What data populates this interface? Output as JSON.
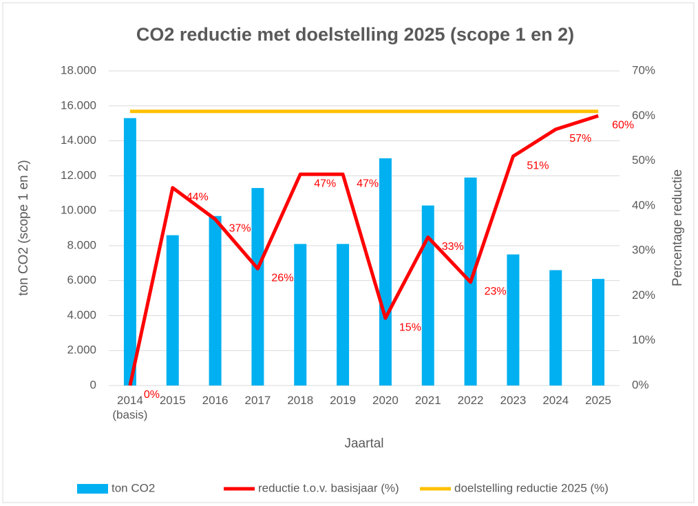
{
  "chart_data": {
    "type": "bar_line",
    "title": "CO2 reductie met doelstelling 2025 (scope 1 en 2)",
    "y_label": "ton CO2 (scope 1 en 2)",
    "y2_label": "Percentage reductie",
    "x_label": "Jaartal",
    "categories": [
      "2014 (basis)",
      "2015",
      "2016",
      "2017",
      "2018",
      "2019",
      "2020",
      "2021",
      "2022",
      "2023",
      "2024",
      "2025"
    ],
    "series": [
      {
        "name": "ton CO2",
        "type": "bar",
        "color": "#00b0f0",
        "values": [
          15300,
          8600,
          9700,
          11300,
          8100,
          8100,
          13000,
          10300,
          11900,
          7500,
          6600,
          6100
        ]
      },
      {
        "name": "reductie t.o.v. basisjaar (%)",
        "type": "line",
        "axis": "y2",
        "color": "#ff0000",
        "values": [
          0,
          44,
          37,
          26,
          47,
          47,
          15,
          33,
          23,
          51,
          57,
          60
        ],
        "value_labels": [
          "0%",
          "44%",
          "37%",
          "26%",
          "47%",
          "47%",
          "15%",
          "33%",
          "23%",
          "51%",
          "57%",
          "60%"
        ]
      },
      {
        "name": "doelstelling reductie 2025 (%)",
        "type": "line",
        "axis": "y2",
        "color": "#ffc000",
        "values": [
          61,
          61,
          61,
          61,
          61,
          61,
          61,
          61,
          61,
          61,
          61,
          61
        ]
      }
    ],
    "ylim": [
      0,
      18000
    ],
    "yticks": [
      0,
      {
        "value": 2000,
        "label": "2.000"
      },
      {
        "value": 4000,
        "label": "4.000"
      },
      {
        "value": 6000,
        "label": "6.000"
      },
      {
        "value": 8000,
        "label": "8.000"
      },
      {
        "value": 10000,
        "label": "10.000"
      },
      {
        "value": 12000,
        "label": "12.000"
      },
      {
        "value": 14000,
        "label": "14.000"
      },
      {
        "value": 16000,
        "label": "16.000"
      },
      {
        "value": 18000,
        "label": "18.000"
      }
    ],
    "y2lim": [
      0,
      70
    ],
    "y2ticks": [
      {
        "value": 0,
        "label": "0%"
      },
      {
        "value": 10,
        "label": "10%"
      },
      {
        "value": 20,
        "label": "20%"
      },
      {
        "value": 30,
        "label": "30%"
      },
      {
        "value": 40,
        "label": "40%"
      },
      {
        "value": 50,
        "label": "50%"
      },
      {
        "value": 60,
        "label": "60%"
      },
      {
        "value": 70,
        "label": "70%"
      }
    ],
    "grid": true,
    "legend": "bottom"
  }
}
